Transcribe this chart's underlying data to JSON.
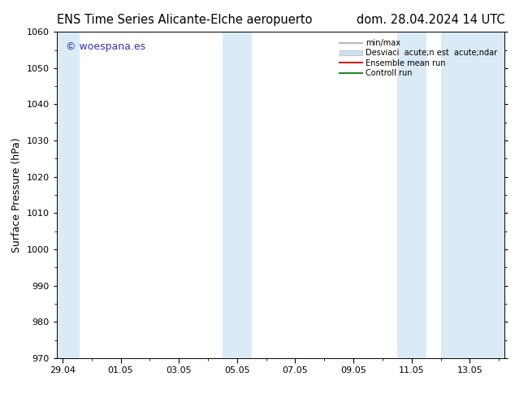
{
  "title_left": "ENS Time Series Alicante-Elche aeropuerto",
  "title_right": "dom. 28.04.2024 14 UTC",
  "ylabel": "Surface Pressure (hPa)",
  "ylim": [
    970,
    1060
  ],
  "yticks": [
    970,
    980,
    990,
    1000,
    1010,
    1020,
    1030,
    1040,
    1050,
    1060
  ],
  "xtick_labels": [
    "29.04",
    "01.05",
    "03.05",
    "05.05",
    "07.05",
    "09.05",
    "11.05",
    "13.05"
  ],
  "xtick_positions": [
    0,
    2,
    4,
    6,
    8,
    10,
    12,
    14
  ],
  "xlim": [
    -0.2,
    15.2
  ],
  "shaded_bands": [
    {
      "x_start": -0.2,
      "x_end": 0.6,
      "color": "#daeaf7"
    },
    {
      "x_start": 5.5,
      "x_end": 6.5,
      "color": "#daeaf7"
    },
    {
      "x_start": 11.5,
      "x_end": 12.5,
      "color": "#daeaf7"
    },
    {
      "x_start": 13.0,
      "x_end": 15.2,
      "color": "#daeaf7"
    }
  ],
  "watermark": "© woespana.es",
  "watermark_color": "#3333bb",
  "bg_color": "#ffffff",
  "plot_bg_color": "#ffffff",
  "title_fontsize": 10.5,
  "tick_fontsize": 8,
  "ylabel_fontsize": 9,
  "legend_label1": "min/max",
  "legend_label2": "Desviaciá acute;n est  acute;ndar",
  "legend_label3": "Ensemble mean run",
  "legend_label4": "Controll run",
  "legend_color1": "#aaaaaa",
  "legend_color2": "#cce0f0",
  "legend_color3": "#cc2222",
  "legend_color4": "#228822"
}
